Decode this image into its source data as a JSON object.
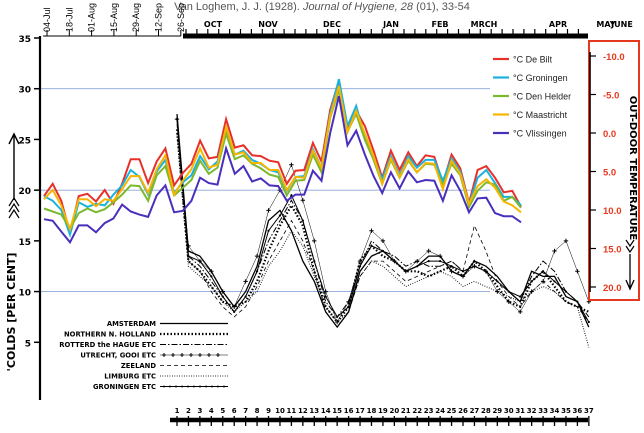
{
  "citation": {
    "prefix": "Van Loghem, J. J. (1928).",
    "journal": "Journal of Hygiene, 28",
    "suffix": "(01), 33-54"
  },
  "colors": {
    "de_bilt": "#e8302a",
    "groningen": "#19b2e0",
    "den_helder": "#7cb82f",
    "maastricht": "#f7b500",
    "vlissingen": "#4a2fbd",
    "right_axis": "#e5391f",
    "gridline": "#8aa6d8"
  },
  "chart_data": [
    {
      "type": "line",
      "title": "'Colds [per cent]",
      "xlabel": "",
      "ylabel": "'COLDS [PER CENT]",
      "ylim": [
        0,
        35
      ],
      "y_ticks": [
        "5",
        "10",
        "15",
        "20",
        "25",
        "30",
        "35"
      ],
      "top_ticks": [
        "04-Jul",
        "18-Jul",
        "01-Aug",
        "15-Aug",
        "29-Aug",
        "12-Sep",
        "26-Sep"
      ],
      "month_labels": [
        "OCT",
        "NOV",
        "DEC",
        "JAN",
        "FEB",
        "MRCH",
        "APR",
        "MAY",
        "JUNE"
      ],
      "bottom_ticks": [
        "1",
        "2",
        "3",
        "4",
        "5",
        "6",
        "7",
        "8",
        "9",
        "10",
        "11",
        "12",
        "13",
        "14",
        "15",
        "16",
        "17",
        "18",
        "19",
        "20",
        "21",
        "22",
        "23",
        "24",
        "25",
        "26",
        "27",
        "28",
        "29",
        "30",
        "31",
        "32",
        "33",
        "34",
        "35",
        "36",
        "37"
      ],
      "legend_placement": "bottom-left",
      "series": [
        {
          "name": "AMSTERDAM",
          "style": "solid",
          "values": [
            27.5,
            14,
            13.5,
            12,
            10,
            8.5,
            10,
            12.5,
            17,
            18,
            16,
            13,
            11,
            8,
            6.5,
            8,
            12,
            13.5,
            14,
            13,
            12,
            12.5,
            13.5,
            13.5,
            12,
            11.5,
            13,
            12.5,
            11.5,
            10,
            9,
            12,
            11.5,
            11.5,
            9.5,
            9,
            6.5
          ]
        },
        {
          "name": "NORTHERN N. HOLLAND",
          "style": "dotted",
          "values": [
            26,
            13,
            12,
            10.5,
            9,
            8.5,
            9,
            11,
            14,
            16.5,
            18.5,
            16.5,
            12,
            8.5,
            7,
            8.5,
            13,
            14.5,
            13.5,
            13,
            12,
            12,
            11.5,
            12,
            12.5,
            11.5,
            13,
            12,
            10.5,
            9,
            8.5,
            11,
            12,
            10.5,
            9,
            8.5,
            8
          ]
        },
        {
          "name": "ROTTERD the HAGUE ETC",
          "style": "dashdot",
          "values": [
            27,
            13.5,
            12.5,
            11,
            9.5,
            8,
            9.5,
            12,
            15,
            17,
            19,
            17,
            13,
            9,
            7.5,
            9,
            12.5,
            15,
            14,
            13.5,
            12.5,
            13,
            12.5,
            12.5,
            13,
            12,
            12.5,
            12,
            11,
            10,
            9,
            11.5,
            13,
            12,
            10,
            9,
            7.5
          ]
        },
        {
          "name": "UTRECHT, GOOI ETC",
          "style": "plus",
          "values": [
            27,
            14.5,
            13,
            12,
            10,
            8.5,
            11,
            13.5,
            18,
            20,
            22.5,
            19,
            15,
            10,
            7,
            9,
            13,
            16,
            15,
            13,
            12,
            13,
            14,
            13.5,
            12,
            11.5,
            12.5,
            12,
            10,
            9,
            8,
            10,
            11,
            14,
            15,
            12,
            9
          ]
        },
        {
          "name": "ZEELAND",
          "style": "dashed",
          "values": [
            26.5,
            13,
            12,
            10,
            8.5,
            7.5,
            8.5,
            10.5,
            13,
            15,
            17,
            15,
            12,
            8,
            6.5,
            8,
            11.5,
            13,
            13,
            12,
            11,
            11.5,
            12,
            12.5,
            13,
            12,
            16.5,
            14,
            11,
            9.5,
            8.5,
            10,
            11,
            10,
            9,
            8.5,
            7
          ]
        },
        {
          "name": "LIMBURG ETC",
          "style": "finedot",
          "values": [
            25.5,
            12.5,
            11.5,
            10.5,
            9,
            8,
            9,
            10,
            12.5,
            14,
            16,
            14.5,
            11.5,
            8.5,
            7,
            8,
            11.5,
            13,
            12.5,
            11.5,
            10.5,
            11,
            11.5,
            12,
            11.5,
            10.5,
            11,
            10.5,
            10,
            9.5,
            9,
            10,
            10.5,
            10,
            9,
            8.5,
            4.5
          ]
        },
        {
          "name": "GRONINGEN ETC",
          "style": "solid-dot",
          "values": [
            27,
            13.5,
            13,
            11.5,
            9.5,
            8,
            9.5,
            12,
            16,
            17.5,
            19.5,
            17,
            13,
            9.5,
            7.5,
            8.5,
            12.5,
            14.5,
            14,
            13,
            12,
            12.5,
            13,
            13,
            12.5,
            12,
            12.5,
            12,
            11,
            10,
            9.5,
            11,
            12,
            11,
            10,
            9,
            7
          ]
        }
      ]
    },
    {
      "type": "line",
      "title": "OUT-DOOR TEMPERATURE",
      "ylabel": "OUT-DOOR TEMPERATURE",
      "ylim": [
        20.0,
        -10.0
      ],
      "y_ticks": [
        "-10.0",
        "-5.0",
        "0.0",
        "5.0",
        "10.0",
        "15.0",
        "20.0"
      ],
      "legend_placement": "top-right",
      "series": [
        {
          "name": "°C De Bilt",
          "values": [
            8.2,
            6.6,
            8.8,
            13.0,
            8.2,
            7.9,
            8.9,
            7.4,
            9.2,
            6.6,
            3.4,
            3.4,
            6.5,
            3.7,
            2.0,
            6.8,
            5.2,
            4.0,
            1.0,
            3.3,
            3.1,
            -1.8,
            1.9,
            1.6,
            2.9,
            3.0,
            3.6,
            3.8,
            6.6,
            4.9,
            4.8,
            1.3,
            3.7,
            -3.0,
            -6.8,
            -0.3,
            -2.9,
            -0.9,
            2.3,
            5.8,
            2.3,
            4.8,
            2.5,
            4.3,
            2.9,
            3.1,
            6.5,
            2.8,
            4.6,
            9.1,
            4.8,
            4.3,
            5.8,
            7.7,
            7.5,
            9.6
          ]
        },
        {
          "name": "°C Groningen",
          "values": [
            8.2,
            8.8,
            10.0,
            13.2,
            9.0,
            9.6,
            9.2,
            9.4,
            8.0,
            6.8,
            4.8,
            5.7,
            8.0,
            5.0,
            3.5,
            7.8,
            6.4,
            5.5,
            3.0,
            4.7,
            3.7,
            -0.6,
            2.8,
            2.3,
            3.5,
            4.0,
            4.8,
            5.1,
            7.5,
            5.7,
            5.6,
            2.1,
            4.5,
            -2.5,
            -7.0,
            -0.9,
            -3.5,
            0.6,
            3.2,
            6.0,
            3.0,
            5.5,
            3.0,
            4.5,
            3.5,
            3.5,
            6.2,
            3.3,
            5.0,
            9.3,
            5.8,
            4.8,
            6.5,
            8.3,
            8.3,
            9.4
          ]
        },
        {
          "name": "°C Den Helder",
          "values": [
            9.8,
            10.2,
            10.6,
            12.4,
            10.4,
            9.8,
            10.3,
            9.9,
            9.0,
            8.0,
            6.8,
            6.9,
            8.8,
            5.5,
            4.3,
            8.1,
            7.1,
            6.1,
            3.6,
            5.3,
            4.5,
            0.1,
            3.4,
            2.9,
            4.0,
            4.6,
            5.4,
            5.7,
            8.1,
            6.2,
            6.1,
            2.8,
            5.1,
            -2.0,
            -5.6,
            -0.2,
            -2.5,
            0.9,
            3.5,
            6.6,
            3.5,
            5.8,
            3.6,
            5.1,
            4.0,
            4.1,
            6.8,
            4.0,
            5.5,
            9.6,
            7.5,
            6.4,
            6.7,
            8.8,
            8.3,
            9.7
          ]
        },
        {
          "name": "°C Maastricht",
          "values": [
            8.6,
            7.4,
            9.4,
            12.5,
            8.6,
            8.6,
            9.5,
            8.6,
            8.8,
            7.3,
            5.6,
            5.6,
            7.8,
            4.7,
            2.9,
            8.0,
            6.2,
            4.7,
            2.0,
            4.5,
            4.1,
            -0.8,
            2.8,
            2.5,
            3.9,
            3.9,
            4.8,
            4.8,
            7.4,
            5.7,
            5.8,
            2.3,
            4.5,
            -2.2,
            -6.1,
            -0.1,
            -2.9,
            0.1,
            3.0,
            6.6,
            3.3,
            5.7,
            3.4,
            5.1,
            3.9,
            4.0,
            7.3,
            3.6,
            5.3,
            9.2,
            6.9,
            6.0,
            7.1,
            8.9,
            9.4,
            10.3
          ]
        },
        {
          "name": "°C Vlissingen",
          "values": [
            11.2,
            11.4,
            12.8,
            14.2,
            12.0,
            12.0,
            12.9,
            11.7,
            11.1,
            9.3,
            10.2,
            10.6,
            10.9,
            8.1,
            6.8,
            10.3,
            10.1,
            8.8,
            5.8,
            6.5,
            6.7,
            2.0,
            5.3,
            4.3,
            6.3,
            5.9,
            6.8,
            6.9,
            8.8,
            8.0,
            8.0,
            4.9,
            6.2,
            0.0,
            -4.8,
            1.6,
            -0.3,
            2.8,
            5.6,
            7.8,
            5.1,
            7.2,
            5.0,
            6.4,
            6.1,
            6.2,
            8.8,
            5.5,
            7.5,
            10.3,
            8.5,
            8.4,
            10.4,
            10.8,
            10.8,
            11.6
          ]
        }
      ]
    }
  ]
}
